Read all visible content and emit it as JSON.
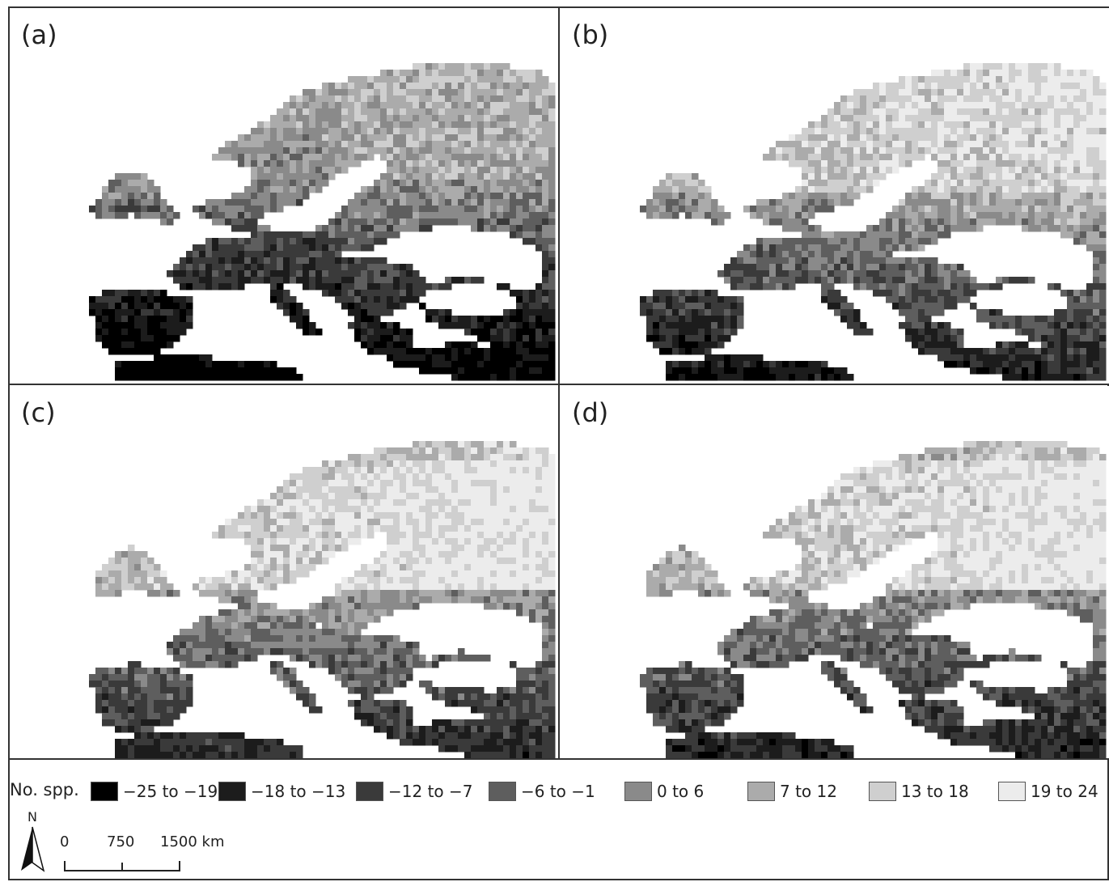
{
  "panels": [
    {
      "label": "(a)",
      "variant": 0
    },
    {
      "label": "(b)",
      "variant": 1
    },
    {
      "label": "(c)",
      "variant": 2
    },
    {
      "label": "(d)",
      "variant": 3
    }
  ],
  "legend": {
    "title": "No. spp.",
    "items": [
      {
        "label": "−25 to −19",
        "color": "#000000"
      },
      {
        "label": "−18 to −13",
        "color": "#1c1c1c"
      },
      {
        "label": "−12 to −7",
        "color": "#3a3a3a"
      },
      {
        "label": "−6 to −1",
        "color": "#5e5e5e"
      },
      {
        "label": "0 to 6",
        "color": "#8a8a8a"
      },
      {
        "label": "7 to 12",
        "color": "#ababab"
      },
      {
        "label": "13 to 18",
        "color": "#cfcfcf"
      },
      {
        "label": "19 to 24",
        "color": "#ececec"
      }
    ]
  },
  "north_arrow": {
    "label": "N",
    "icon": "north-arrow-icon"
  },
  "scale_bar": {
    "labels": [
      "0",
      "750",
      "1500 km"
    ]
  }
}
